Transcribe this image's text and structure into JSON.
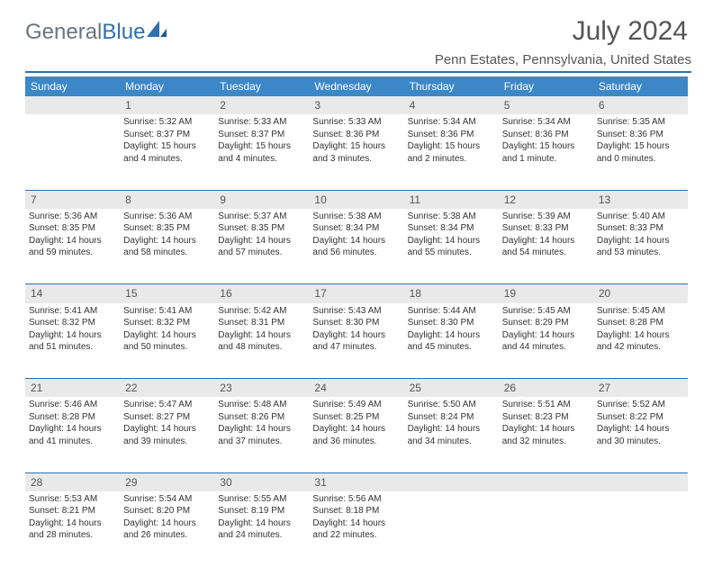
{
  "brand": {
    "word1": "General",
    "word2": "Blue"
  },
  "title": "July 2024",
  "location": "Penn Estates, Pennsylvania, United States",
  "colors": {
    "header_bg": "#3b87c8",
    "header_text": "#ffffff",
    "accent": "#2f6fb0",
    "daynum_bg": "#e9e9e9",
    "text": "#333333"
  },
  "days": [
    "Sunday",
    "Monday",
    "Tuesday",
    "Wednesday",
    "Thursday",
    "Friday",
    "Saturday"
  ],
  "weeks": [
    {
      "nums": [
        "",
        "1",
        "2",
        "3",
        "4",
        "5",
        "6"
      ],
      "cells": [
        "",
        "Sunrise: 5:32 AM\nSunset: 8:37 PM\nDaylight: 15 hours and 4 minutes.",
        "Sunrise: 5:33 AM\nSunset: 8:37 PM\nDaylight: 15 hours and 4 minutes.",
        "Sunrise: 5:33 AM\nSunset: 8:36 PM\nDaylight: 15 hours and 3 minutes.",
        "Sunrise: 5:34 AM\nSunset: 8:36 PM\nDaylight: 15 hours and 2 minutes.",
        "Sunrise: 5:34 AM\nSunset: 8:36 PM\nDaylight: 15 hours and 1 minute.",
        "Sunrise: 5:35 AM\nSunset: 8:36 PM\nDaylight: 15 hours and 0 minutes."
      ]
    },
    {
      "nums": [
        "7",
        "8",
        "9",
        "10",
        "11",
        "12",
        "13"
      ],
      "cells": [
        "Sunrise: 5:36 AM\nSunset: 8:35 PM\nDaylight: 14 hours and 59 minutes.",
        "Sunrise: 5:36 AM\nSunset: 8:35 PM\nDaylight: 14 hours and 58 minutes.",
        "Sunrise: 5:37 AM\nSunset: 8:35 PM\nDaylight: 14 hours and 57 minutes.",
        "Sunrise: 5:38 AM\nSunset: 8:34 PM\nDaylight: 14 hours and 56 minutes.",
        "Sunrise: 5:38 AM\nSunset: 8:34 PM\nDaylight: 14 hours and 55 minutes.",
        "Sunrise: 5:39 AM\nSunset: 8:33 PM\nDaylight: 14 hours and 54 minutes.",
        "Sunrise: 5:40 AM\nSunset: 8:33 PM\nDaylight: 14 hours and 53 minutes."
      ]
    },
    {
      "nums": [
        "14",
        "15",
        "16",
        "17",
        "18",
        "19",
        "20"
      ],
      "cells": [
        "Sunrise: 5:41 AM\nSunset: 8:32 PM\nDaylight: 14 hours and 51 minutes.",
        "Sunrise: 5:41 AM\nSunset: 8:32 PM\nDaylight: 14 hours and 50 minutes.",
        "Sunrise: 5:42 AM\nSunset: 8:31 PM\nDaylight: 14 hours and 48 minutes.",
        "Sunrise: 5:43 AM\nSunset: 8:30 PM\nDaylight: 14 hours and 47 minutes.",
        "Sunrise: 5:44 AM\nSunset: 8:30 PM\nDaylight: 14 hours and 45 minutes.",
        "Sunrise: 5:45 AM\nSunset: 8:29 PM\nDaylight: 14 hours and 44 minutes.",
        "Sunrise: 5:45 AM\nSunset: 8:28 PM\nDaylight: 14 hours and 42 minutes."
      ]
    },
    {
      "nums": [
        "21",
        "22",
        "23",
        "24",
        "25",
        "26",
        "27"
      ],
      "cells": [
        "Sunrise: 5:46 AM\nSunset: 8:28 PM\nDaylight: 14 hours and 41 minutes.",
        "Sunrise: 5:47 AM\nSunset: 8:27 PM\nDaylight: 14 hours and 39 minutes.",
        "Sunrise: 5:48 AM\nSunset: 8:26 PM\nDaylight: 14 hours and 37 minutes.",
        "Sunrise: 5:49 AM\nSunset: 8:25 PM\nDaylight: 14 hours and 36 minutes.",
        "Sunrise: 5:50 AM\nSunset: 8:24 PM\nDaylight: 14 hours and 34 minutes.",
        "Sunrise: 5:51 AM\nSunset: 8:23 PM\nDaylight: 14 hours and 32 minutes.",
        "Sunrise: 5:52 AM\nSunset: 8:22 PM\nDaylight: 14 hours and 30 minutes."
      ]
    },
    {
      "nums": [
        "28",
        "29",
        "30",
        "31",
        "",
        "",
        ""
      ],
      "cells": [
        "Sunrise: 5:53 AM\nSunset: 8:21 PM\nDaylight: 14 hours and 28 minutes.",
        "Sunrise: 5:54 AM\nSunset: 8:20 PM\nDaylight: 14 hours and 26 minutes.",
        "Sunrise: 5:55 AM\nSunset: 8:19 PM\nDaylight: 14 hours and 24 minutes.",
        "Sunrise: 5:56 AM\nSunset: 8:18 PM\nDaylight: 14 hours and 22 minutes.",
        "",
        "",
        ""
      ]
    }
  ]
}
